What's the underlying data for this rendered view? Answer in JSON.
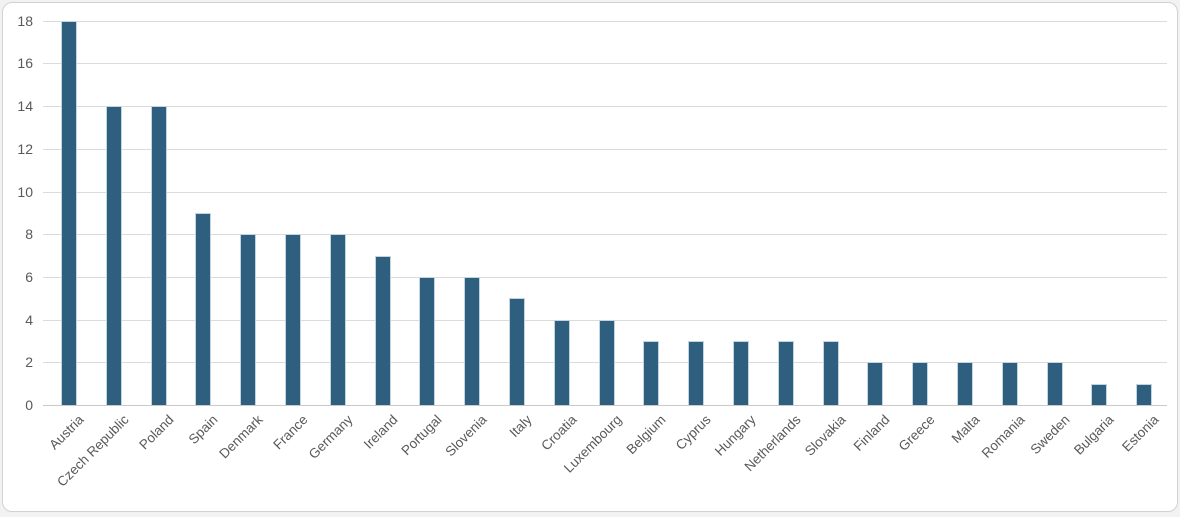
{
  "chart_data": {
    "type": "bar",
    "title": "",
    "xlabel": "",
    "ylabel": "",
    "categories": [
      "Austria",
      "Czech Republic",
      "Poland",
      "Spain",
      "Denmark",
      "France",
      "Germany",
      "Ireland",
      "Portugal",
      "Slovenia",
      "Italy",
      "Croatia",
      "Luxembourg",
      "Belgium",
      "Cyprus",
      "Hungary",
      "Netherlands",
      "Slovakia",
      "Finland",
      "Greece",
      "Malta",
      "Romania",
      "Sweden",
      "Bulgaria",
      "Estonia"
    ],
    "values": [
      18,
      14,
      14,
      9,
      8,
      8,
      8,
      7,
      6,
      6,
      5,
      4,
      4,
      3,
      3,
      3,
      3,
      3,
      2,
      2,
      2,
      2,
      2,
      1,
      1
    ],
    "ylim": [
      0,
      18
    ],
    "ytick_step": 2,
    "yticks": [
      0,
      2,
      4,
      6,
      8,
      10,
      12,
      14,
      16,
      18
    ],
    "grid": true,
    "legend": false,
    "x_tick_rotation": 45
  },
  "colors": {
    "bar": "#2F5F7E",
    "bar_edge": "#C2D4DF",
    "grid": "#DBDBDB",
    "axis_line": "#C9C9C9",
    "tick_text": "#595959",
    "frame_border": "#D2D2D2",
    "background": "#FFFFFF",
    "page_background": "#F2F2F2"
  }
}
